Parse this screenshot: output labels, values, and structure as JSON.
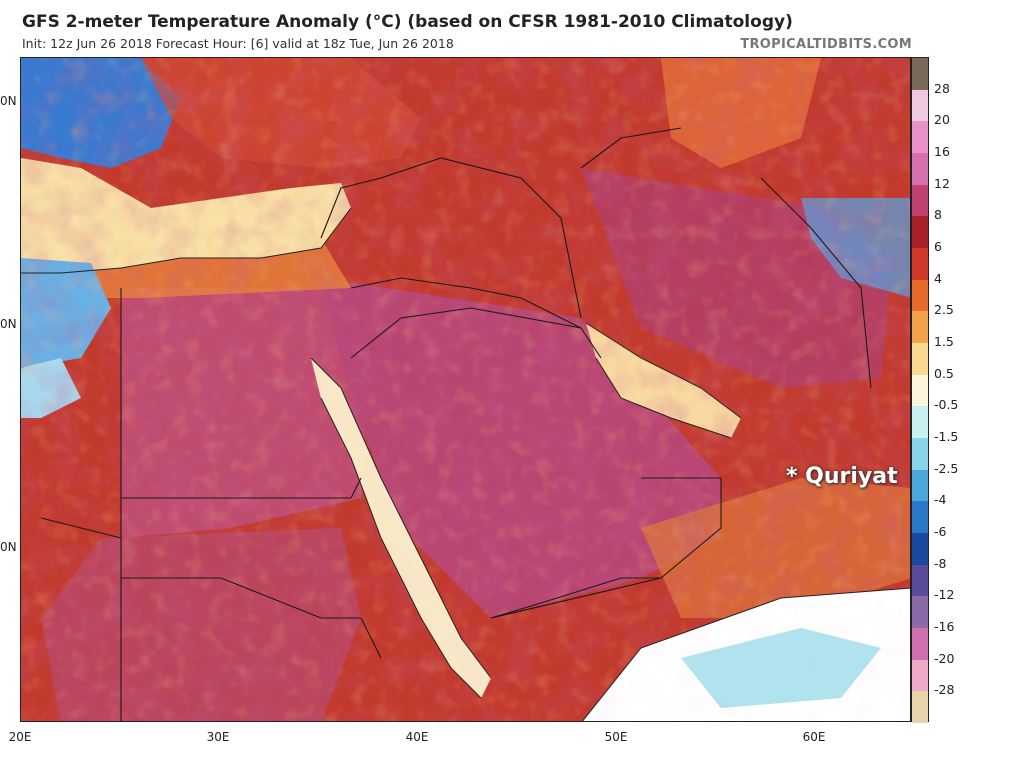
{
  "header": {
    "title": "GFS 2-meter Temperature Anomaly (°C) (based on CFSR 1981-2010 Climatology)",
    "subtitle": "Init: 12z Jun 26 2018   Forecast Hour: [6]   valid at 18z Tue, Jun 26 2018",
    "site": "TROPICALTIDBITS.COM"
  },
  "legend": {
    "labels": [
      "28",
      "20",
      "16",
      "12",
      "8",
      "6",
      "4",
      "2.5",
      "1.5",
      "0.5",
      "-0.5",
      "-1.5",
      "-2.5",
      "-4",
      "-6",
      "-8",
      "-12",
      "-16",
      "-20",
      "-28"
    ],
    "colors": [
      "#7a6a5a",
      "#f0c8e0",
      "#e890c8",
      "#d870b0",
      "#c04070",
      "#a82028",
      "#d03828",
      "#e86a2a",
      "#f4a24a",
      "#fad890",
      "#fdf4dc",
      "#c8f0f0",
      "#88d4e8",
      "#4aa8dc",
      "#2a78c8",
      "#1a4aa0",
      "#5a4a9a",
      "#8a6aa8",
      "#d070b0",
      "#f0a8c8",
      "#e8d4a8"
    ]
  },
  "axes": {
    "lon_labels": [
      "20E",
      "30E",
      "40E",
      "50E",
      "60E"
    ],
    "lat_labels": [
      "0N",
      "0N",
      "0N"
    ]
  },
  "annotation": {
    "label": "* Quriyat"
  }
}
